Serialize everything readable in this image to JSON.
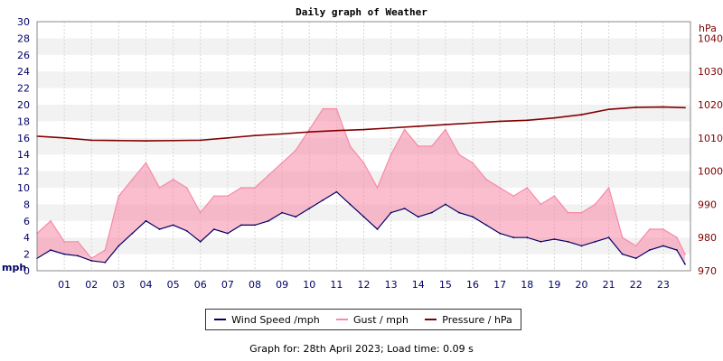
{
  "chart_data": {
    "type": "line",
    "title": "Daily graph of Weather",
    "footer": "Graph for: 28th April 2023; Load time: 0.09 s",
    "left_axis": {
      "label": "mph",
      "min": 0,
      "max": 30,
      "ticks": [
        "0",
        "2",
        "4",
        "6",
        "8",
        "10",
        "12",
        "14",
        "16",
        "18",
        "20",
        "22",
        "24",
        "26",
        "28",
        "30"
      ],
      "color": "#000066"
    },
    "right_axis": {
      "label": "hPa",
      "min": 970,
      "max": 1045,
      "ticks": [
        "970",
        "980",
        "990",
        "1000",
        "1010",
        "1020",
        "1030",
        "1040"
      ],
      "color": "#800000"
    },
    "x_axis": {
      "min": 0,
      "max": 24,
      "ticks": [
        "01",
        "02",
        "03",
        "04",
        "05",
        "06",
        "07",
        "08",
        "09",
        "10",
        "11",
        "12",
        "13",
        "14",
        "15",
        "16",
        "17",
        "18",
        "19",
        "20",
        "21",
        "22",
        "23"
      ]
    },
    "grid": true,
    "legend_position": "bottom",
    "series": [
      {
        "name": "Wind Speed /mph",
        "color": "#000066",
        "axis": "left",
        "x": [
          0,
          0.5,
          1,
          1.5,
          2,
          2.5,
          3,
          3.5,
          4,
          4.5,
          5,
          5.5,
          6,
          6.5,
          7,
          7.5,
          8,
          8.5,
          9,
          9.5,
          10,
          10.5,
          11,
          11.5,
          12,
          12.5,
          13,
          13.5,
          14,
          14.5,
          15,
          15.5,
          16,
          16.5,
          17,
          17.5,
          18,
          18.5,
          19,
          19.5,
          20,
          20.5,
          21,
          21.5,
          22,
          22.5,
          23,
          23.5,
          23.8
        ],
        "values": [
          1.5,
          2.5,
          2.0,
          1.8,
          1.2,
          1.0,
          3.0,
          4.5,
          6.0,
          5.0,
          5.5,
          4.8,
          3.5,
          5.0,
          4.5,
          5.5,
          5.5,
          6.0,
          7.0,
          6.5,
          7.5,
          8.5,
          9.5,
          8.0,
          6.5,
          5.0,
          7.0,
          7.5,
          6.5,
          7.0,
          8.0,
          7.0,
          6.5,
          5.5,
          4.5,
          4.0,
          4.0,
          3.5,
          3.8,
          3.5,
          3.0,
          3.5,
          4.0,
          2.0,
          1.5,
          2.5,
          3.0,
          2.5,
          0.8
        ]
      },
      {
        "name": "Gust / mph",
        "color": "#f789a8",
        "axis": "left",
        "x": [
          0,
          0.5,
          1,
          1.5,
          2,
          2.5,
          3,
          3.5,
          4,
          4.5,
          5,
          5.5,
          6,
          6.5,
          7,
          7.5,
          8,
          8.5,
          9,
          9.5,
          10,
          10.5,
          11,
          11.5,
          12,
          12.5,
          13,
          13.5,
          14,
          14.5,
          15,
          15.5,
          16,
          16.5,
          17,
          17.5,
          18,
          18.5,
          19,
          19.5,
          20,
          20.5,
          21,
          21.5,
          22,
          22.5,
          23,
          23.5,
          23.8
        ],
        "values": [
          4.5,
          6.0,
          3.5,
          3.5,
          1.5,
          2.5,
          9.0,
          11.0,
          13.0,
          10.0,
          11.0,
          10.0,
          7.0,
          9.0,
          9.0,
          10.0,
          10.0,
          11.5,
          13.0,
          14.5,
          17.0,
          19.5,
          19.5,
          15.0,
          13.0,
          10.0,
          14.0,
          17.0,
          15.0,
          15.0,
          17.0,
          14.0,
          13.0,
          11.0,
          10.0,
          9.0,
          10.0,
          8.0,
          9.0,
          7.0,
          7.0,
          8.0,
          10.0,
          4.0,
          3.0,
          5.0,
          5.0,
          4.0,
          2.0
        ],
        "low": [
          1.5,
          2.5,
          2.0,
          1.8,
          1.2,
          1.0,
          3.0,
          4.5,
          6.0,
          5.0,
          5.5,
          4.8,
          3.5,
          5.0,
          4.5,
          5.5,
          5.5,
          6.0,
          7.0,
          6.5,
          7.5,
          8.5,
          9.5,
          8.0,
          6.5,
          5.0,
          7.0,
          7.5,
          6.5,
          7.0,
          8.0,
          7.0,
          6.5,
          5.5,
          4.5,
          4.0,
          4.0,
          3.5,
          3.8,
          3.5,
          3.0,
          3.5,
          4.0,
          2.0,
          1.5,
          2.5,
          3.0,
          2.5,
          0.8
        ]
      },
      {
        "name": "Pressure / hPa",
        "color": "#800000",
        "axis": "right",
        "x": [
          0,
          1,
          2,
          3,
          4,
          5,
          6,
          7,
          8,
          9,
          10,
          11,
          12,
          13,
          14,
          15,
          16,
          17,
          18,
          19,
          20,
          21,
          22,
          23,
          23.8
        ],
        "values": [
          1010.5,
          1010,
          1009.3,
          1009.2,
          1009.1,
          1009.2,
          1009.3,
          1010,
          1010.7,
          1011.2,
          1011.8,
          1012.2,
          1012.5,
          1013,
          1013.5,
          1014,
          1014.5,
          1015,
          1015.3,
          1016,
          1017,
          1018.6,
          1019.2,
          1019.3,
          1019.1
        ]
      }
    ]
  }
}
